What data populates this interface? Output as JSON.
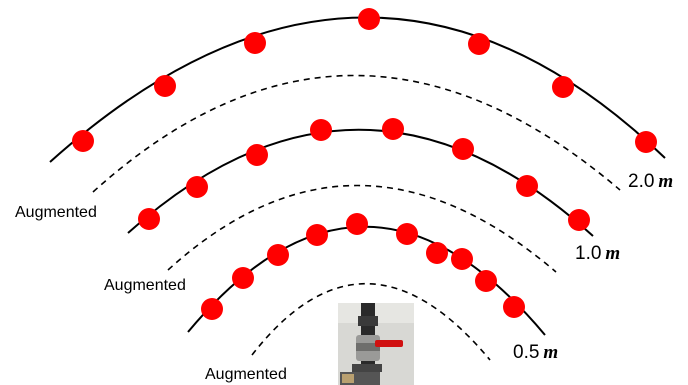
{
  "arcs": [
    {
      "distance": "2.0",
      "unit": "m",
      "augmented_label": "Augmented",
      "marker_count": 7
    },
    {
      "distance": "1.0",
      "unit": "m",
      "augmented_label": "Augmented",
      "marker_count": 8
    },
    {
      "distance": "0.5",
      "unit": "m",
      "augmented_label": "Augmented",
      "marker_count": 10
    }
  ],
  "colors": {
    "marker": "#ff0000",
    "line": "#000000",
    "photo_wall": "#d8d8d4",
    "pipe": "#2a2a2a",
    "valve_handle": "#d01010"
  },
  "photo": {
    "icon": "pipe-valve-photo-icon"
  }
}
